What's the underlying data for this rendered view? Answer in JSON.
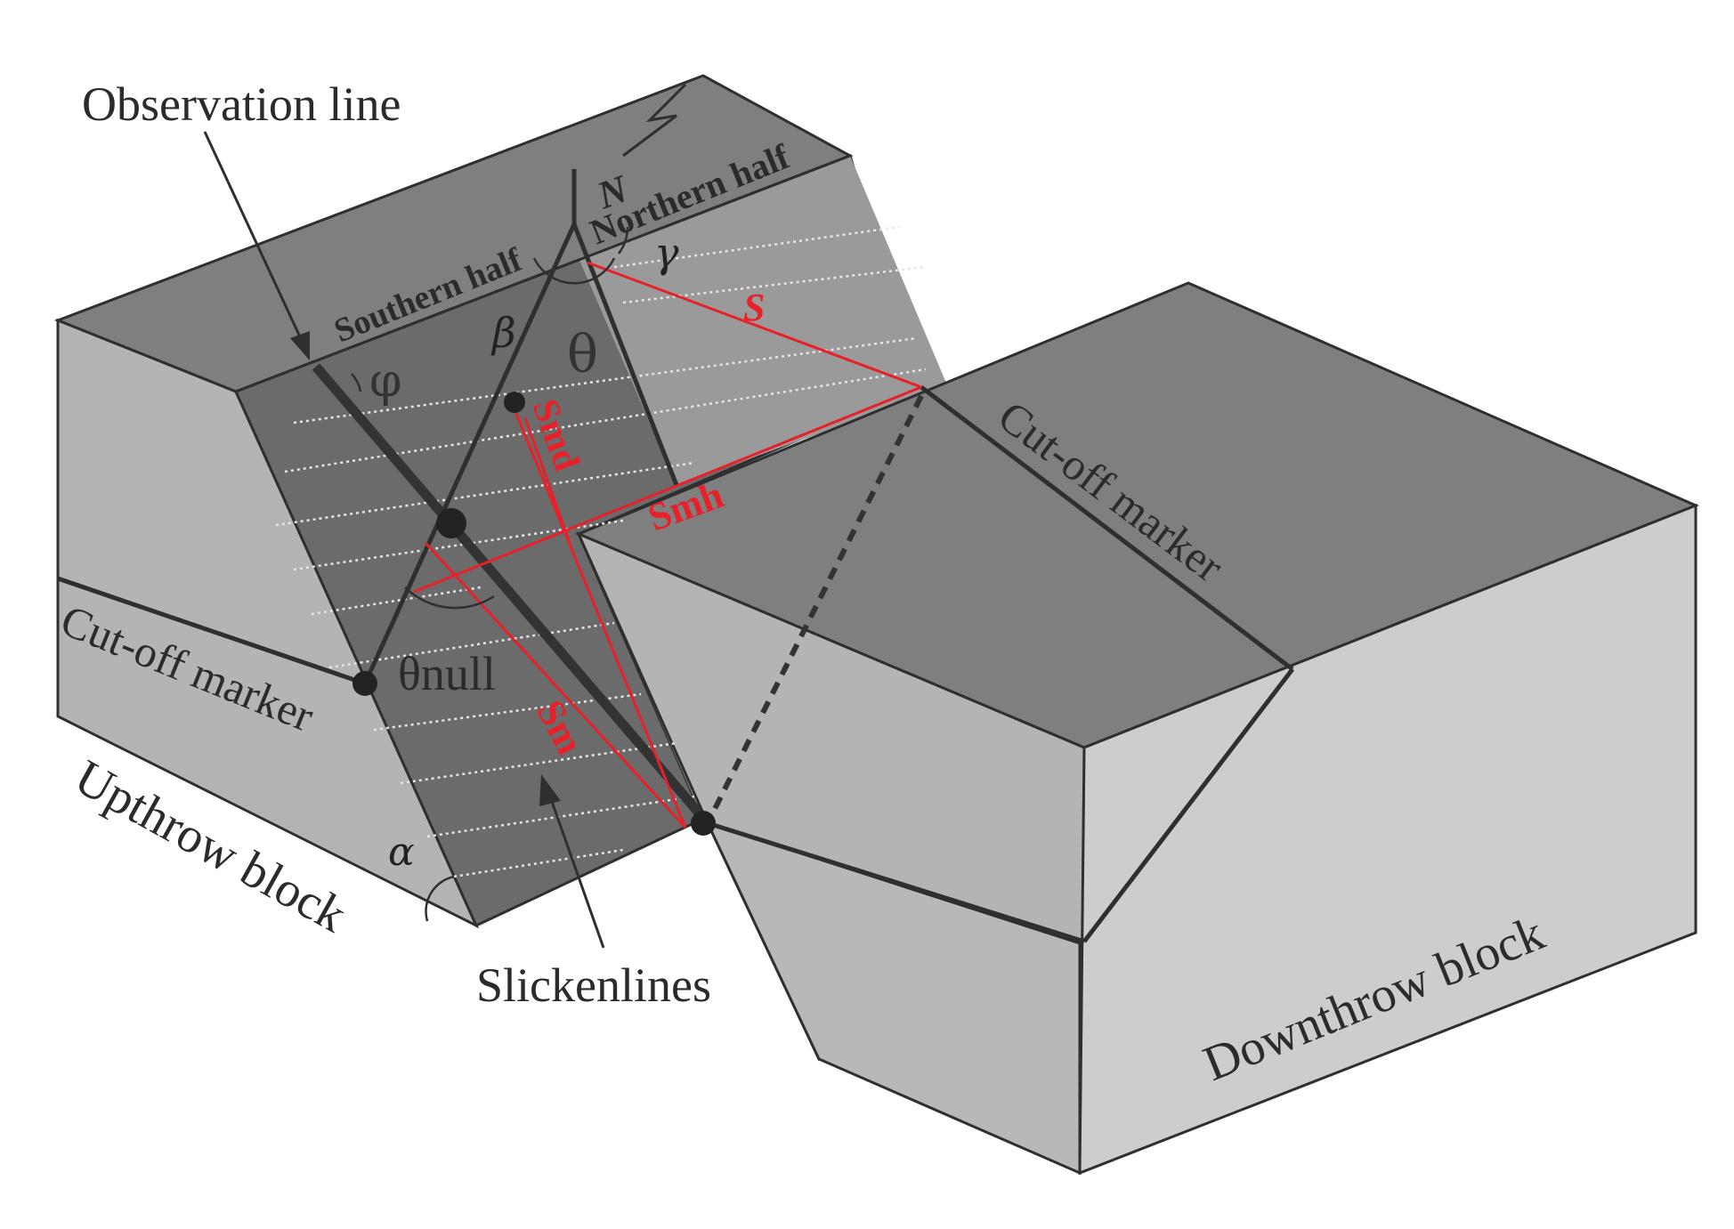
{
  "labels": {
    "observation_line": "Observation line",
    "northern_half": "Northern half",
    "southern_half": "Southern half",
    "cutoff_marker_right": "Cut-off marker",
    "cutoff_marker_left": "Cut-off marker",
    "upthrow_block": "Upthrow block",
    "downthrow_block": "Downthrow block",
    "slickenlines": "Slickenlines",
    "theta_null": "θnull",
    "north": "N"
  },
  "greek": {
    "gamma": "γ",
    "beta": "β",
    "theta": "θ",
    "phi": "φ",
    "alpha": "α"
  },
  "red_labels": {
    "s": "S",
    "smd": "Smd",
    "smh": "Smh",
    "sm": "Sm"
  },
  "colors": {
    "top_dark": "#7f7f7f",
    "fault_plane_dark": "#6b6b6b",
    "fault_plane_light": "#9c9c9c",
    "side_light": "#b4b4b4",
    "side_lighter": "#cdcdcd",
    "red": "#e8202a",
    "line": "#2f2f2f"
  }
}
